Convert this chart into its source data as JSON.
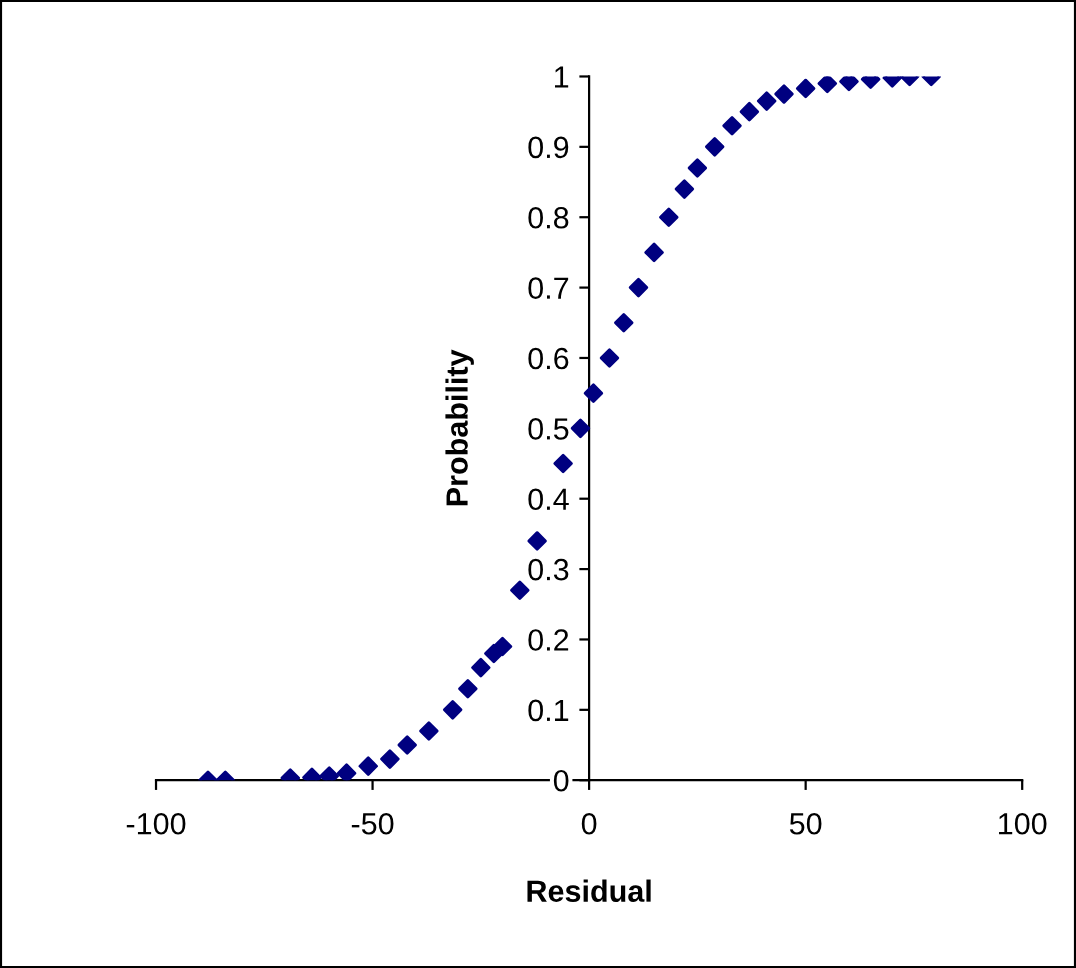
{
  "chart_data": {
    "type": "scatter",
    "xlabel": "Residual",
    "ylabel": "Probability",
    "x": [
      -88,
      -84,
      -69,
      -64,
      -60,
      -56,
      -51,
      -46,
      -42,
      -37,
      -31.5,
      -28,
      -25,
      -22,
      -20,
      -16,
      -12,
      -6,
      -2,
      1,
      4.7,
      8,
      11.4,
      15,
      18.4,
      22,
      25,
      29,
      33,
      37,
      41,
      45,
      50,
      55,
      60,
      65,
      70,
      74,
      79
    ],
    "series": [
      {
        "color": "#000080",
        "values": [
          0,
          0,
          0.003,
          0.004,
          0.006,
          0.01,
          0.02,
          0.03,
          0.05,
          0.07,
          0.1,
          0.13,
          0.16,
          0.18,
          0.19,
          0.27,
          0.34,
          0.45,
          0.5,
          0.55,
          0.6,
          0.65,
          0.7,
          0.75,
          0.8,
          0.84,
          0.87,
          0.9,
          0.93,
          0.95,
          0.965,
          0.975,
          0.983,
          0.99,
          0.993,
          0.996,
          0.998,
          1,
          1
        ]
      }
    ],
    "xlim": [
      -100,
      100
    ],
    "xticks": [
      -100,
      -50,
      0,
      50,
      100
    ],
    "ylim": [
      0,
      1
    ],
    "yticks": [
      0,
      0.1,
      0.2,
      0.3,
      0.4,
      0.5,
      0.6,
      0.7,
      0.8,
      0.9,
      1
    ],
    "marker": "diamond",
    "grid": false,
    "legend": false
  }
}
